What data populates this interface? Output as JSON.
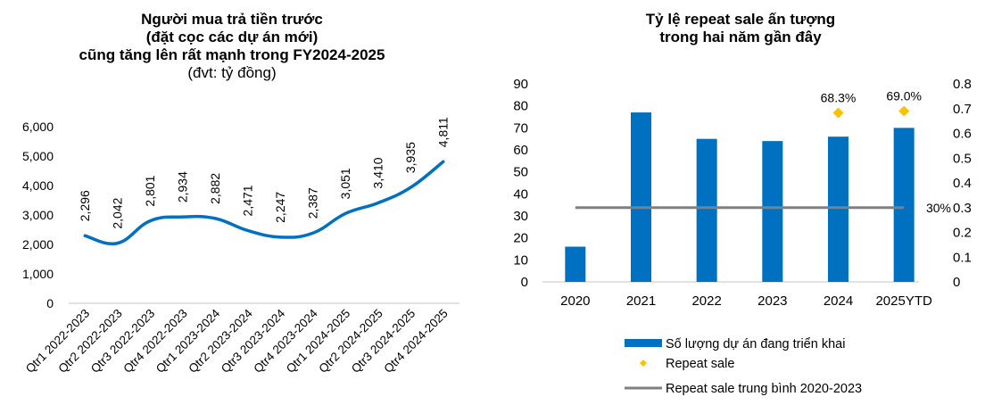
{
  "chart_data": [
    {
      "type": "line",
      "title_lines": [
        "Người mua trả tiền trước",
        "(đặt cọc các dự án mới)",
        "cũng tăng lên rất mạnh trong FY2024-2025"
      ],
      "subtitle": "(đvt: tỷ đồng)",
      "categories": [
        "Qtr1 2022-2023",
        "Qtr2 2022-2023",
        "Qtr3 2022-2023",
        "Qtr4 2022-2023",
        "Qtr1 2023-2024",
        "Qtr2 2023-2024",
        "Qtr3 2023-2024",
        "Qtr4 2023-2024",
        "Qtr1 2024-2025",
        "Qtr2 2024-2025",
        "Qtr3 2024-2025",
        "Qtr4 2024-2025"
      ],
      "values": [
        2296,
        2042,
        2801,
        2934,
        2882,
        2471,
        2247,
        2387,
        3051,
        3410,
        3935,
        4811
      ],
      "data_labels": [
        "2,296",
        "2,042",
        "2,801",
        "2,934",
        "2,882",
        "2,471",
        "2,247",
        "2,387",
        "3,051",
        "3,410",
        "3,935",
        "4,811"
      ],
      "yticks": [
        "0",
        "1,000",
        "2,000",
        "3,000",
        "4,000",
        "5,000",
        "6,000"
      ],
      "ylim": [
        0,
        6000
      ],
      "line_color": "#0070C0",
      "smooth": true
    },
    {
      "type": "bar",
      "title_lines": [
        "Tỷ lệ repeat sale ấn tượng",
        "trong hai năm gần đây"
      ],
      "categories": [
        "2020",
        "2021",
        "2022",
        "2023",
        "2024",
        "2025YTD"
      ],
      "series": [
        {
          "name": "Số lượng dự án đang triển khai",
          "type": "bar",
          "axis": "left",
          "values": [
            16,
            77,
            65,
            64,
            66,
            70
          ],
          "color": "#0070C0"
        },
        {
          "name": "Repeat sale",
          "type": "scatter",
          "axis": "right",
          "values": [
            null,
            null,
            null,
            null,
            0.683,
            0.69
          ],
          "labels": [
            null,
            null,
            null,
            null,
            "68.3%",
            "69.0%"
          ],
          "color": "#FFC000"
        },
        {
          "name": "Repeat sale trung bình 2020-2023",
          "type": "line",
          "axis": "right",
          "values": [
            0.3,
            0.3,
            0.3,
            0.3,
            0.3,
            0.3
          ],
          "end_label": "30%",
          "color": "#808080"
        }
      ],
      "yticks_left": [
        "0",
        "10",
        "20",
        "30",
        "40",
        "50",
        "60",
        "70",
        "80",
        "90"
      ],
      "ylim_left": [
        0,
        90
      ],
      "yticks_right": [
        "0",
        "0.1",
        "0.2",
        "0.3",
        "0.4",
        "0.5",
        "0.6",
        "0.7",
        "0.8"
      ],
      "ylim_right": [
        0,
        0.8
      ],
      "legend_position": "bottom"
    }
  ]
}
